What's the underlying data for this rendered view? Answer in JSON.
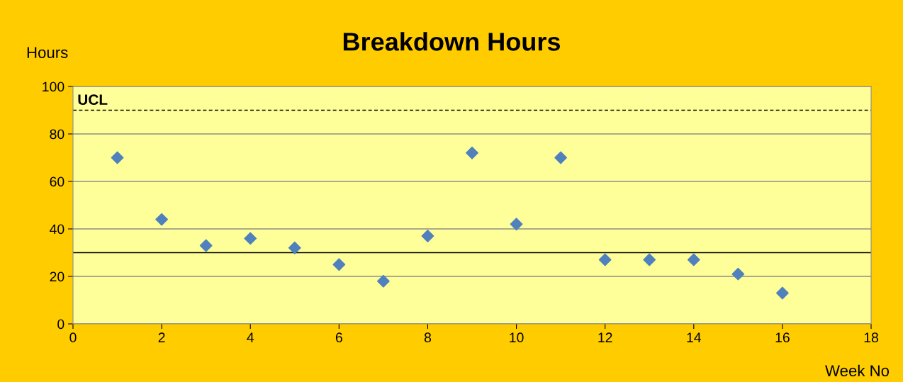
{
  "chart_data": {
    "type": "scatter",
    "title": "Breakdown Hours",
    "xlabel": "Week No",
    "ylabel": "Hours",
    "x": [
      1,
      2,
      3,
      4,
      5,
      6,
      7,
      8,
      9,
      10,
      11,
      12,
      13,
      14,
      15,
      16
    ],
    "series": [
      {
        "color": "#4f81bd",
        "values": [
          70,
          44,
          33,
          36,
          32,
          25,
          18,
          37,
          72,
          42,
          70,
          27,
          27,
          27,
          21,
          13
        ]
      }
    ],
    "xlim": [
      0,
      18
    ],
    "xticks": [
      0,
      2,
      4,
      6,
      8,
      10,
      12,
      14,
      16,
      18
    ],
    "ylim": [
      0,
      100
    ],
    "yticks": [
      0,
      20,
      40,
      60,
      80,
      100
    ],
    "grid": "y",
    "marker": "diamond",
    "ref_lines": [
      {
        "axis": "y",
        "value": 90,
        "label": "UCL",
        "color": "#000000",
        "line_style": "dashed"
      },
      {
        "axis": "y",
        "value": 30,
        "color": "#000000",
        "line_style": "solid"
      }
    ]
  }
}
